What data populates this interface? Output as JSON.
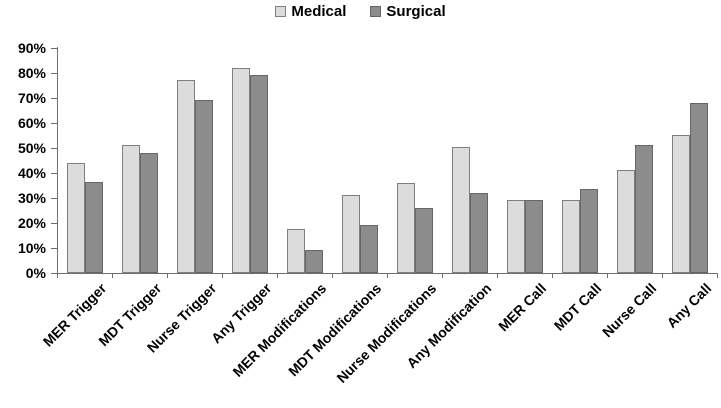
{
  "chart_data": {
    "type": "bar",
    "title": "",
    "categories": [
      "MER Trigger",
      "MDT Trigger",
      "Nurse Trigger",
      "Any Trigger",
      "MER Modifications",
      "MDT Modifications",
      "Nurse Modifications",
      "Any Modification",
      "MER Call",
      "MDT Call",
      "Nurse Call",
      "Any Call"
    ],
    "series": [
      {
        "name": "Medical",
        "color": "#dcdcdc",
        "border_color": "#7f7f7f",
        "values": [
          44,
          51,
          77,
          82,
          17.5,
          31,
          36,
          50.5,
          29,
          29,
          41,
          55
        ]
      },
      {
        "name": "Surgical",
        "color": "#8c8c8c",
        "border_color": "#666666",
        "values": [
          36.5,
          48,
          69,
          79,
          9,
          19,
          26,
          32,
          29,
          33.5,
          51,
          68
        ]
      }
    ],
    "xlabel": "",
    "ylabel": "",
    "ylim": [
      0,
      90
    ],
    "ytick_step": 10,
    "ytick_labels": [
      "0%",
      "10%",
      "20%",
      "30%",
      "40%",
      "50%",
      "60%",
      "70%",
      "80%",
      "90%"
    ],
    "legend_position": "top-center",
    "grid": false,
    "axis_color": "#6e6e6e",
    "text_color": "#000000"
  }
}
